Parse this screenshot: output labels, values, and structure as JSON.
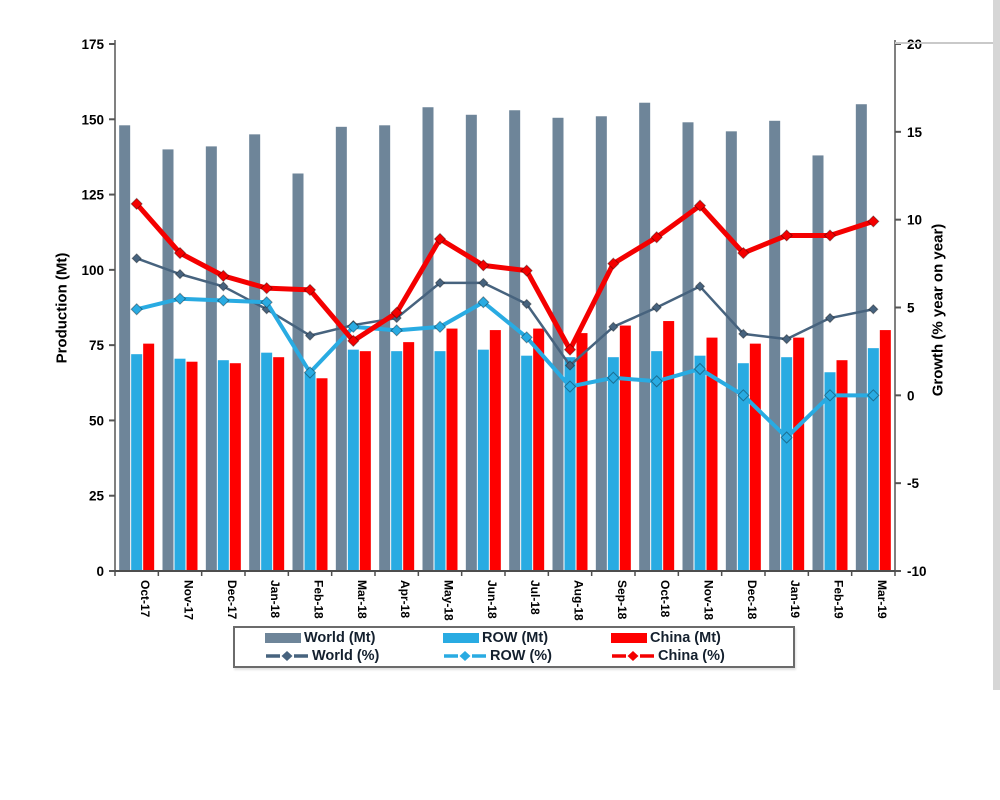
{
  "chart_data": {
    "type": "combo-bar-line",
    "title": "",
    "categories": [
      "Oct-17",
      "Nov-17",
      "Dec-17",
      "Jan-18",
      "Feb-18",
      "Mar-18",
      "Apr-18",
      "May-18",
      "Jun-18",
      "Jul-18",
      "Aug-18",
      "Sep-18",
      "Oct-18",
      "Nov-18",
      "Dec-18",
      "Jan-19",
      "Feb-19",
      "Mar-19"
    ],
    "bar_series": [
      {
        "name": "World (Mt)",
        "axis": "left",
        "color": "#6e8599",
        "values": [
          148,
          140,
          141,
          145,
          132,
          147.5,
          148,
          154,
          151.5,
          153,
          150.5,
          151,
          155.5,
          149,
          146,
          149.5,
          138,
          155
        ]
      },
      {
        "name": "ROW (Mt)",
        "axis": "left",
        "color": "#29abe2",
        "values": [
          72,
          70.5,
          70,
          72.5,
          66,
          73.5,
          73,
          73,
          73.5,
          71.5,
          71,
          71,
          73,
          71.5,
          69,
          71,
          66,
          74
        ]
      },
      {
        "name": "China (Mt)",
        "axis": "left",
        "color": "#fe0000",
        "values": [
          75.5,
          69.5,
          69,
          71,
          64,
          73,
          76,
          80.5,
          80,
          80.5,
          79,
          81.5,
          83,
          77.5,
          75.5,
          77.5,
          70,
          80
        ]
      }
    ],
    "line_series": [
      {
        "name": "World (%)",
        "axis": "right",
        "color": "#47637e",
        "width": 2.5,
        "marker": 4.5,
        "values": [
          7.8,
          6.9,
          6.2,
          4.9,
          3.4,
          4.0,
          4.4,
          6.4,
          6.4,
          5.2,
          1.7,
          3.9,
          5.0,
          6.2,
          3.5,
          3.2,
          4.4,
          4.9
        ]
      },
      {
        "name": "ROW (%)",
        "axis": "right",
        "color": "#29abe2",
        "width": 4,
        "marker": 5.5,
        "values": [
          4.9,
          5.5,
          5.4,
          5.3,
          1.3,
          3.9,
          3.7,
          3.9,
          5.3,
          3.3,
          0.5,
          1.0,
          0.8,
          1.5,
          0.0,
          -2.4,
          0.0,
          0.0
        ]
      },
      {
        "name": "China (%)",
        "axis": "right",
        "color": "#f40000",
        "width": 5,
        "marker": 5.5,
        "values": [
          10.9,
          8.1,
          6.8,
          6.1,
          6.0,
          3.1,
          4.7,
          8.9,
          7.4,
          7.1,
          2.6,
          7.5,
          9.0,
          10.8,
          8.1,
          9.1,
          9.1,
          9.9
        ]
      }
    ],
    "left_axis": {
      "title": "Production (Mt)",
      "min": 0,
      "max": 175,
      "ticks": [
        0,
        25,
        50,
        75,
        100,
        125,
        150,
        175
      ]
    },
    "right_axis": {
      "title": "Growth (% year on year)",
      "min": -10,
      "max": 20,
      "ticks": [
        -10,
        -5,
        0,
        5,
        10,
        15,
        20
      ]
    },
    "grid": false,
    "legend_position": "bottom",
    "legend": [
      {
        "label": "World (Mt)",
        "swatch": "bar",
        "color": "#6e8599"
      },
      {
        "label": "ROW (Mt)",
        "swatch": "bar",
        "color": "#29abe2"
      },
      {
        "label": "China (Mt)",
        "swatch": "bar",
        "color": "#fe0000"
      },
      {
        "label": "World (%)",
        "swatch": "line",
        "color": "#47637e"
      },
      {
        "label": "ROW (%)",
        "swatch": "line",
        "color": "#29abe2"
      },
      {
        "label": "China (%)",
        "swatch": "line",
        "color": "#f40000"
      }
    ]
  },
  "axes": {
    "left": {
      "title": "Production (Mt)"
    },
    "right": {
      "title": "Growth (% year on year)"
    }
  }
}
